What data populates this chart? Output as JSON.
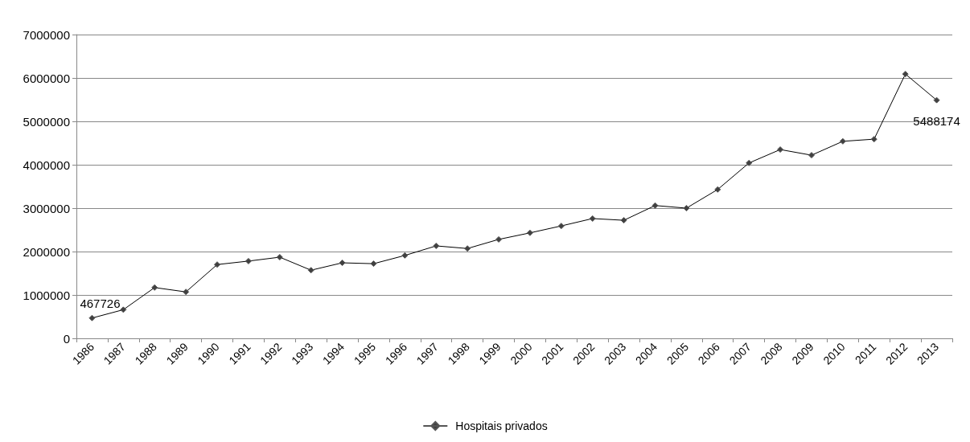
{
  "chart_data": {
    "type": "line",
    "categories": [
      "1986",
      "1987",
      "1988",
      "1989",
      "1990",
      "1991",
      "1992",
      "1993",
      "1994",
      "1995",
      "1996",
      "1997",
      "1998",
      "1999",
      "2000",
      "2001",
      "2002",
      "2003",
      "2004",
      "2005",
      "2006",
      "2007",
      "2008",
      "2009",
      "2010",
      "2011",
      "2012",
      "2013"
    ],
    "series": [
      {
        "name": "Hospitais privados",
        "color": "#404040",
        "values": [
          467726,
          660000,
          1170000,
          1070000,
          1700000,
          1780000,
          1870000,
          1570000,
          1740000,
          1720000,
          1910000,
          2130000,
          2070000,
          2280000,
          2430000,
          2590000,
          2760000,
          2720000,
          3060000,
          3000000,
          3430000,
          4040000,
          4350000,
          4220000,
          4540000,
          4590000,
          6090000,
          5488174
        ],
        "value_labels": [
          "467726",
          null,
          null,
          null,
          null,
          null,
          null,
          null,
          null,
          null,
          null,
          null,
          null,
          null,
          null,
          null,
          null,
          null,
          null,
          null,
          null,
          null,
          null,
          null,
          null,
          null,
          null,
          "5488174"
        ]
      }
    ],
    "ylim": [
      0,
      7000000
    ],
    "yticks": [
      0,
      1000000,
      2000000,
      3000000,
      4000000,
      5000000,
      6000000,
      7000000
    ],
    "grid": "y",
    "legend": "bottom",
    "marker": "diamond",
    "line_style": "solid"
  }
}
